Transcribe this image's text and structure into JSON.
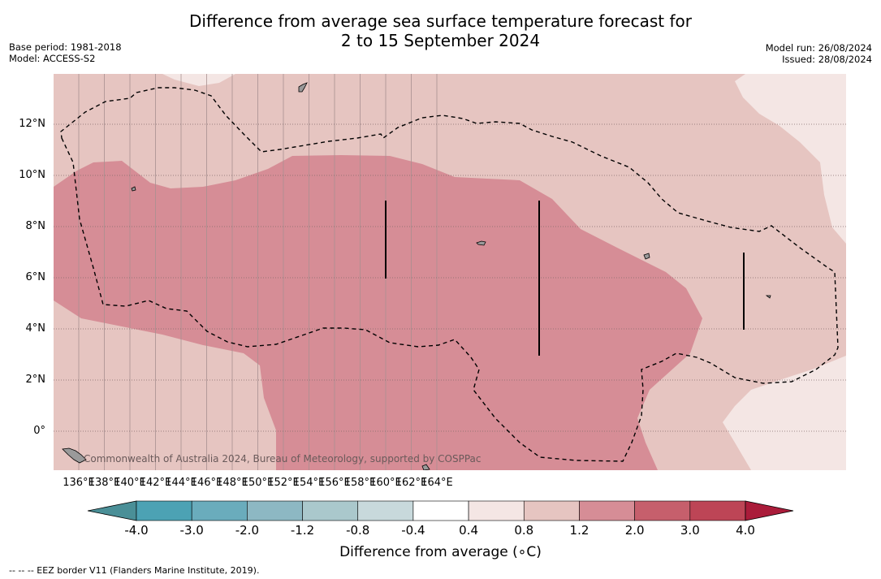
{
  "title_line1": "Difference from average sea surface temperature forecast for",
  "title_line2": "2 to 15 September 2024",
  "base_period": "Base period: 1981-2018",
  "model": "Model: ACCESS-S2",
  "model_run": "Model run: 26/08/2024",
  "issued": "Issued: 28/08/2024",
  "lat_labels": [
    "12°N",
    "10°N",
    "8°N",
    "6°N",
    "4°N",
    "2°N",
    "0°"
  ],
  "lon_labels": [
    "136°E",
    "138°E",
    "140°E",
    "142°E",
    "144°E",
    "146°E",
    "148°E",
    "150°E",
    "152°E",
    "154°E",
    "156°E",
    "158°E",
    "160°E",
    "162°E",
    "164°E"
  ],
  "copyright": "Commonwealth of Australia 2024, Bureau of Meteorology, supported by COSPPac",
  "colorbar": {
    "title": "Difference from average (∘C)",
    "tick_labels": [
      "-4.0",
      "-3.0",
      "-2.0",
      "-1.2",
      "-0.8",
      "-0.4",
      "0.4",
      "0.8",
      "1.2",
      "2.0",
      "3.0",
      "4.0"
    ],
    "colors": [
      "#4a8f97",
      "#4ca2b4",
      "#6aacbc",
      "#8db8c3",
      "#aac8cc",
      "#c8d9dc",
      "#ffffff",
      "#f4e6e4",
      "#e6c5c1",
      "#d68d96",
      "#c65f6c",
      "#bd4556",
      "#aa1c3a"
    ]
  },
  "footnote": "--  --  -- EEZ border V11 (Flanders Marine Institute, 2019).",
  "map_colors": {
    "band_0_4_0_8": "#f4e6e4",
    "band_0_8_1_2": "#e6c5c1",
    "band_1_2_2_0": "#d68d96",
    "land": "#9a9a9a"
  }
}
